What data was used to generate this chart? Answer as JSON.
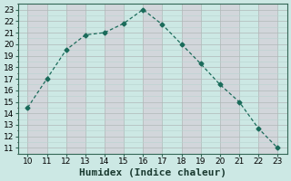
{
  "x": [
    10,
    11,
    12,
    13,
    14,
    15,
    16,
    17,
    18,
    19,
    20,
    21,
    22,
    23
  ],
  "y": [
    14.5,
    17.0,
    19.5,
    20.8,
    21.0,
    21.8,
    23.0,
    21.7,
    20.0,
    18.3,
    16.5,
    15.0,
    12.7,
    11.0
  ],
  "xlabel": "Humidex (Indice chaleur)",
  "xlim": [
    9.5,
    23.5
  ],
  "ylim": [
    10.5,
    23.5
  ],
  "xticks": [
    10,
    11,
    12,
    13,
    14,
    15,
    16,
    17,
    18,
    19,
    20,
    21,
    22,
    23
  ],
  "yticks": [
    11,
    12,
    13,
    14,
    15,
    16,
    17,
    18,
    19,
    20,
    21,
    22,
    23
  ],
  "line_color": "#1a6b5a",
  "bg_color": "#cce8e4",
  "grid_color_major": "#c0b8c0",
  "grid_color_minor": "#c8deda",
  "marker": "D",
  "marker_size": 2.5,
  "line_width": 0.9,
  "xlabel_fontsize": 8,
  "tick_fontsize": 6.5
}
